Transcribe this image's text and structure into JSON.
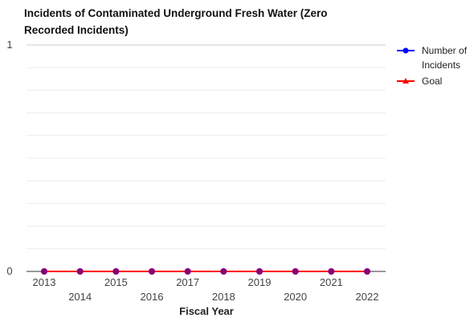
{
  "chart_data": {
    "type": "line",
    "title_lines": [
      "Incidents of Contaminated Underground Fresh Water (Zero",
      "Recorded Incidents)"
    ],
    "xlabel": "Fiscal Year",
    "ylabel": "",
    "categories": [
      "2013",
      "2014",
      "2015",
      "2016",
      "2017",
      "2018",
      "2019",
      "2020",
      "2021",
      "2022"
    ],
    "ylim": [
      0,
      1
    ],
    "yticks": [
      "0",
      "1"
    ],
    "grid": true,
    "legend_position": "right",
    "series": [
      {
        "name_lines": [
          "Number of",
          "Incidents"
        ],
        "values": [
          0,
          0,
          0,
          0,
          0,
          0,
          0,
          0,
          0,
          0
        ],
        "color": "#0000ff",
        "marker": "circle"
      },
      {
        "name_lines": [
          "Goal"
        ],
        "values": [
          0,
          0,
          0,
          0,
          0,
          0,
          0,
          0,
          0,
          0
        ],
        "color": "#ff0000",
        "marker": "triangle"
      }
    ]
  }
}
